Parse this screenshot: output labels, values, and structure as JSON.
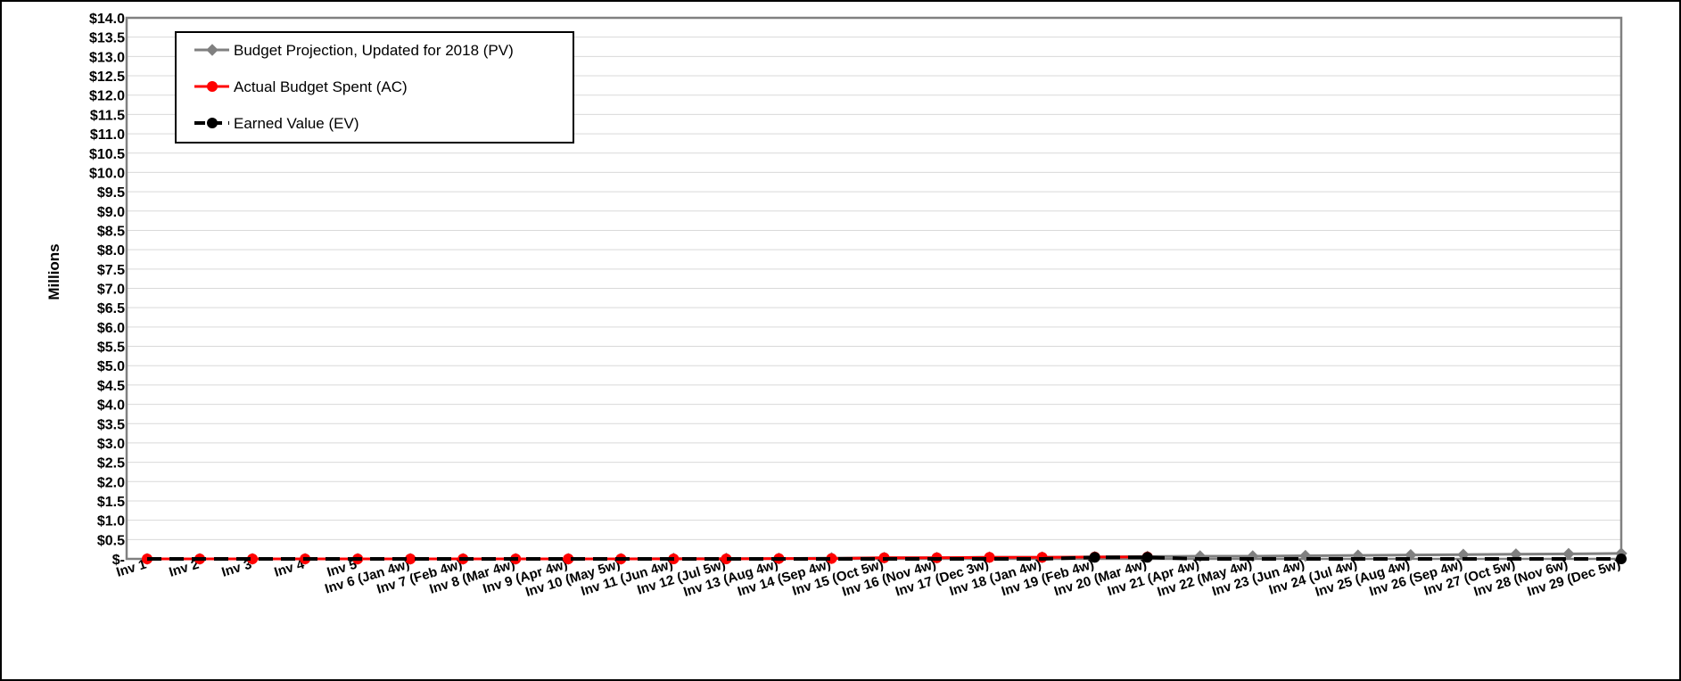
{
  "chart_data": {
    "type": "line",
    "title": "",
    "xlabel": "",
    "ylabel": "Millions",
    "ylim": [
      0,
      14
    ],
    "y_tick_step": 0.5,
    "y_tick_labels": [
      "$-",
      "$0.5",
      "$1.0",
      "$1.5",
      "$2.0",
      "$2.5",
      "$3.0",
      "$3.5",
      "$4.0",
      "$4.5",
      "$5.0",
      "$5.5",
      "$6.0",
      "$6.5",
      "$7.0",
      "$7.5",
      "$8.0",
      "$8.5",
      "$9.0",
      "$9.5",
      "$10.0",
      "$10.5",
      "$11.0",
      "$11.5",
      "$12.0",
      "$12.5",
      "$13.0",
      "$13.5",
      "$14.0"
    ],
    "grid": true,
    "legend_position": "top-left",
    "categories": [
      "Inv 1",
      "Inv 2",
      "Inv 3",
      "Inv 4",
      "Inv 5",
      "Inv 6 (Jan 4w)",
      "Inv 7 (Feb 4w)",
      "Inv 8 (Mar 4w)",
      "Inv 9 (Apr 4w)",
      "Inv 10 (May 5w)",
      "Inv 11 (Jun 4w)",
      "Inv 12 (Jul 5w)",
      "Inv 13 (Aug 4w)",
      "Inv 14 (Sep 4w)",
      "Inv 15 (Oct 5w)",
      "Inv 16 (Nov 4w)",
      "Inv 17 (Dec 3w)",
      "Inv 18 (Jan 4w)",
      "Inv 19 (Feb 4w)",
      "Inv 20 (Mar 4w)",
      "Inv 21 (Apr 4w)",
      "Inv  22 (May 4w)",
      "Inv 23 (Jun 4w)",
      "Inv 24 (Jul 4w)",
      "Inv 25 (Aug 4w)",
      "Inv 26 (Sep 4w)",
      "Inv  27 (Oct 5w)",
      "Inv  28 (Nov 6w)",
      "Inv  29 (Dec 5w)"
    ],
    "series": [
      {
        "name": "Budget Projection, Updated for 2018 (PV)",
        "color": "#808080",
        "marker": "diamond",
        "line_style": "solid",
        "values": [
          0,
          0,
          0,
          0,
          0,
          0,
          0,
          0,
          0,
          0,
          0.01,
          0.01,
          0.01,
          0.02,
          0.03,
          0.03,
          0.04,
          0.04,
          0.05,
          0.06,
          0.07,
          0.07,
          0.08,
          0.09,
          0.1,
          0.11,
          0.12,
          0.13,
          0.14
        ]
      },
      {
        "name": "Actual Budget Spent (AC)",
        "color": "#ff0000",
        "marker": "circle",
        "line_style": "solid",
        "values": [
          0,
          0,
          0,
          0,
          0,
          0,
          0,
          0,
          0,
          0,
          0,
          0,
          0.01,
          0.01,
          0.03,
          0.03,
          0.04,
          0.04,
          0.05,
          0.05,
          null,
          null,
          null,
          null,
          null,
          null,
          null,
          null,
          null
        ]
      },
      {
        "name": "Earned Value (EV)",
        "color": "#000000",
        "marker": "circle",
        "line_style": "dashed",
        "values": [
          0,
          0,
          0,
          0,
          0,
          0,
          0,
          0,
          0,
          0,
          0,
          0,
          0,
          0,
          0,
          0,
          0,
          0,
          0.04,
          0.04,
          0,
          0,
          0,
          0,
          0,
          0,
          0,
          0,
          0
        ]
      }
    ]
  }
}
